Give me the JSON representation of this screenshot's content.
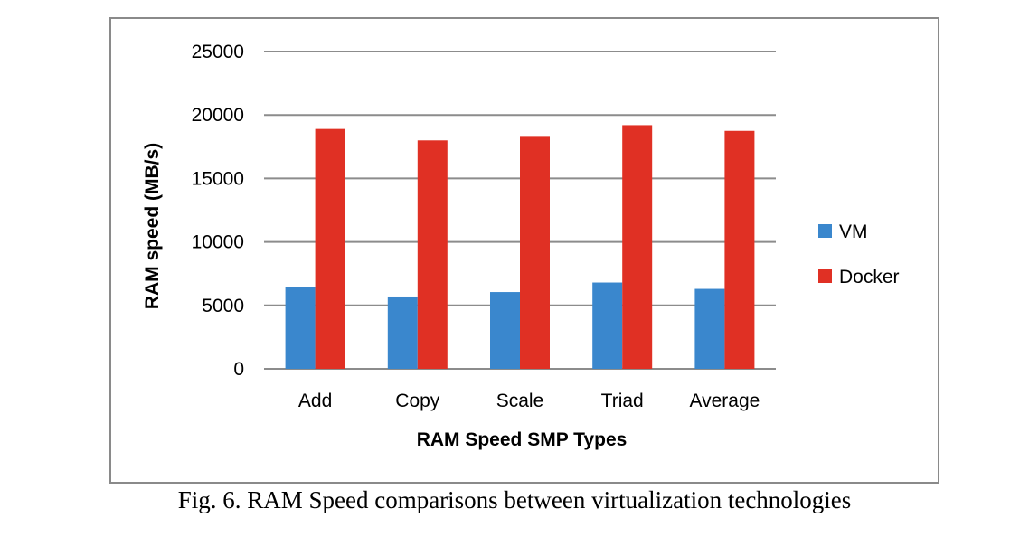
{
  "chart_data": {
    "type": "bar",
    "title": "",
    "xlabel": "RAM Speed SMP Types",
    "ylabel": "RAM speed (MB/s)",
    "categories": [
      "Add",
      "Copy",
      "Scale",
      "Triad",
      "Average"
    ],
    "series": [
      {
        "name": "VM",
        "color": "#3a87cd",
        "values": [
          6450,
          5700,
          6050,
          6800,
          6300
        ]
      },
      {
        "name": "Docker",
        "color": "#e03024",
        "values": [
          18900,
          18000,
          18350,
          19200,
          18750
        ]
      }
    ],
    "ylim": [
      0,
      25000
    ],
    "yticks": [
      "0",
      "5000",
      "10000",
      "15000",
      "20000",
      "25000"
    ],
    "grid": true,
    "legend": "right"
  },
  "caption": "Fig. 6. RAM Speed comparisons between virtualization technologies"
}
